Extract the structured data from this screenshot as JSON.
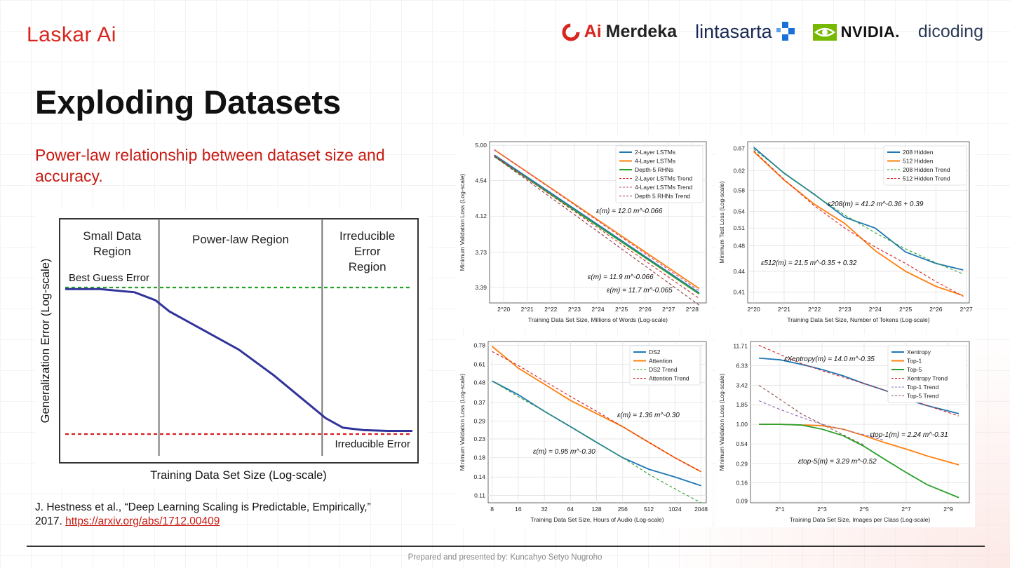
{
  "brand": "Laskar Ai",
  "partners": {
    "merdeka_ai": "Ai",
    "merdeka_text": "Merdeka",
    "lintasarta": "lintasarta",
    "nvidia": "NVIDIA.",
    "dicoding": "dicoding"
  },
  "slide": {
    "title": "Exploding Datasets",
    "subtitle": "Power-law relationship between dataset size and accuracy.",
    "citation_text": "J. Hestness et al., “Deep Learning Scaling is Predictable, Empirically,” 2017.",
    "citation_link": "https://arxiv.org/abs/1712.00409",
    "footer": "Prepared and presented by: Kuncahyo Setyo Nugroho"
  },
  "chart_data": [
    {
      "type": "line",
      "title": "",
      "xlabel": "Training Data Set Size (Log-scale)",
      "ylabel": "Generalization Error (Log-scale)",
      "regions": [
        "Small Data Region",
        "Power-law Region",
        "Irreducible Error Region"
      ],
      "region_lines": [
        [
          "Small Data",
          "Region"
        ],
        [
          "Power-law Region"
        ],
        [
          "Irreducible",
          "Error",
          "Region"
        ]
      ],
      "annotations": [
        "Best Guess Error",
        "Irreducible Error"
      ],
      "x": [
        0.0,
        0.1,
        0.2,
        0.26,
        0.3,
        0.4,
        0.5,
        0.6,
        0.7,
        0.75,
        0.8,
        0.86,
        0.93,
        1.0
      ],
      "y": [
        0.96,
        0.96,
        0.94,
        0.89,
        0.82,
        0.7,
        0.58,
        0.42,
        0.24,
        0.15,
        0.09,
        0.075,
        0.07,
        0.07
      ],
      "best_guess_level": 0.97,
      "irreducible_level": 0.05,
      "region_boundaries": [
        0.27,
        0.74
      ],
      "colors": {
        "curve": "#30339a",
        "best_guess": "#22a122",
        "irreducible": "#d42020",
        "boundary": "#777777"
      }
    },
    {
      "type": "line",
      "xlabel": "Training Data Set Size, Millions of Words (Log-scale)",
      "ylabel": "Minimum Validation Loss (Log-scale)",
      "x_scale": "log2",
      "x_ticks": [
        20,
        21,
        22,
        23,
        24,
        25,
        26,
        27,
        28
      ],
      "y_ticks": [
        "5.00",
        "4.54",
        "4.12",
        "3.73",
        "3.39"
      ],
      "ylim": [
        3.25,
        5.05
      ],
      "series": [
        {
          "name": "2-Layer LSTMs",
          "style": "solid",
          "color": "#1f77b4",
          "x": [
            19.6,
            28.3
          ],
          "y": [
            4.87,
            3.34
          ]
        },
        {
          "name": "4-Layer LSTMs",
          "style": "solid",
          "color": "#ff7f0e",
          "x": [
            19.6,
            28.3
          ],
          "y": [
            4.94,
            3.38
          ]
        },
        {
          "name": "Depth-5 RHNs",
          "style": "solid",
          "color": "#2ca02c",
          "x": [
            19.6,
            28.3
          ],
          "y": [
            4.85,
            3.33
          ]
        },
        {
          "name": "2-Layer LSTMs Trend",
          "style": "dashed",
          "color": "#d62728",
          "x": [
            19.6,
            28.3
          ],
          "y": [
            4.86,
            3.29
          ]
        },
        {
          "name": "4-Layer LSTMs Trend",
          "style": "dashed",
          "color": "#c4448f",
          "x": [
            19.6,
            28.3
          ],
          "y": [
            4.94,
            3.36
          ]
        },
        {
          "name": "Depth 5 RHNs Trend",
          "style": "dashed",
          "color": "#8c3a3a",
          "x": [
            19.6,
            28.3
          ],
          "y": [
            4.85,
            3.23
          ]
        }
      ],
      "annotations": [
        "ε(m) = 12.0 m^-0.066",
        "ε(m) = 11.9 m^-0.066",
        "ε(m) = 11.7 m^-0.065"
      ]
    },
    {
      "type": "line",
      "xlabel": "Training Data Set Size, Number of Tokens (Log-scale)",
      "ylabel": "Minimum Test Loss (Log-scale)",
      "x_scale": "log2",
      "x_ticks": [
        20,
        21,
        22,
        23,
        24,
        25,
        26,
        27
      ],
      "y_ticks": [
        "0.67",
        "0.62",
        "0.58",
        "0.54",
        "0.51",
        "0.48",
        "0.44",
        "0.41"
      ],
      "series": [
        {
          "name": "208 Hidden",
          "style": "solid",
          "color": "#1f77b4",
          "x": [
            20,
            21,
            22,
            23,
            24,
            25,
            26,
            26.9
          ],
          "y": [
            0.672,
            0.615,
            0.572,
            0.529,
            0.51,
            0.47,
            0.452,
            0.442
          ]
        },
        {
          "name": "512 Hidden",
          "style": "solid",
          "color": "#ff7f0e",
          "x": [
            20,
            21,
            22,
            23,
            24,
            25,
            26,
            26.9
          ],
          "y": [
            0.662,
            0.601,
            0.553,
            0.518,
            0.472,
            0.44,
            0.418,
            0.405
          ]
        },
        {
          "name": "208 Hidden Trend",
          "style": "dashed",
          "color": "#2ca02c",
          "x": [
            20,
            21,
            22,
            23,
            24,
            25,
            26,
            26.9
          ],
          "y": [
            0.668,
            0.616,
            0.571,
            0.533,
            0.502,
            0.475,
            0.453,
            0.436
          ]
        },
        {
          "name": "512 Hidden Trend",
          "style": "dashed",
          "color": "#d62728",
          "x": [
            20,
            21,
            22,
            23,
            24,
            25,
            26,
            26.9
          ],
          "y": [
            0.664,
            0.602,
            0.55,
            0.51,
            0.478,
            0.452,
            0.425,
            0.404
          ]
        }
      ],
      "annotations": [
        "ε208(m) = 41.2 m^-0.36 + 0.39",
        "ε512(m) = 21.5 m^-0.35 + 0.32"
      ]
    },
    {
      "type": "line",
      "xlabel": "Training Data Set Size, Hours of Audio (Log-scale)",
      "ylabel": "Minimum Validation Loss (Log-scale)",
      "x_scale": "log2",
      "x_ticks": [
        8,
        16,
        32,
        64,
        128,
        256,
        512,
        1024,
        2048
      ],
      "y_ticks": [
        "0.78",
        "0.61",
        "0.48",
        "0.37",
        "0.29",
        "0.23",
        "0.18",
        "0.14",
        "0.11"
      ],
      "series": [
        {
          "name": "DS2",
          "style": "solid",
          "color": "#1f77b4",
          "x": [
            3,
            4,
            5,
            6,
            7,
            8,
            9,
            10,
            11
          ],
          "y": [
            0.49,
            0.41,
            0.33,
            0.27,
            0.22,
            0.18,
            0.155,
            0.14,
            0.125
          ]
        },
        {
          "name": "Attention",
          "style": "solid",
          "color": "#ff7f0e",
          "x": [
            3,
            4,
            5,
            6,
            7,
            8,
            9,
            10,
            11
          ],
          "y": [
            0.77,
            0.58,
            0.47,
            0.38,
            0.32,
            0.27,
            0.22,
            0.18,
            0.15
          ]
        },
        {
          "name": "DS2 Trend",
          "style": "dashed",
          "color": "#2ca02c",
          "x": [
            3,
            4,
            5,
            6,
            7,
            8,
            9,
            10,
            11
          ],
          "y": [
            0.49,
            0.4,
            0.33,
            0.27,
            0.22,
            0.18,
            0.145,
            0.12,
            0.1
          ]
        },
        {
          "name": "Attention Trend",
          "style": "dashed",
          "color": "#d62728",
          "x": [
            3,
            4,
            5,
            6,
            7,
            8,
            9,
            10,
            11
          ],
          "y": [
            0.72,
            0.6,
            0.49,
            0.4,
            0.33,
            0.27,
            0.22,
            0.18,
            0.15
          ]
        }
      ],
      "annotations": [
        "ε(m) = 1.36 m^-0.30",
        "ε(m) = 0.95 m^-0.30"
      ]
    },
    {
      "type": "line",
      "xlabel": "Training Data Set Size, Images per Class (Log-scale)",
      "ylabel": "Minimum Validation Loss (Log-scale)",
      "x_scale": "log2",
      "x_ticks": [
        1,
        3,
        5,
        7,
        9
      ],
      "y_ticks": [
        "11.71",
        "6.33",
        "3.42",
        "1.85",
        "1.00",
        "0.54",
        "0.29",
        "0.16",
        "0.09"
      ],
      "series": [
        {
          "name": "Xentropy",
          "style": "solid",
          "color": "#1f77b4",
          "x": [
            0,
            1,
            2,
            3,
            4,
            5,
            6,
            7,
            8,
            9.5
          ],
          "y": [
            8.0,
            7.6,
            6.6,
            5.6,
            4.6,
            3.6,
            2.9,
            2.2,
            1.8,
            1.4
          ]
        },
        {
          "name": "Top-1",
          "style": "solid",
          "color": "#ff7f0e",
          "x": [
            0,
            1,
            2,
            3,
            4,
            5,
            6,
            7,
            8,
            9.5
          ],
          "y": [
            1.0,
            1.0,
            0.98,
            0.96,
            0.86,
            0.7,
            0.56,
            0.46,
            0.37,
            0.28
          ]
        },
        {
          "name": "Top-5",
          "style": "solid",
          "color": "#2ca02c",
          "x": [
            0,
            1,
            2,
            3,
            4,
            5,
            6,
            7,
            8,
            9.5
          ],
          "y": [
            1.0,
            1.0,
            0.98,
            0.86,
            0.7,
            0.5,
            0.33,
            0.22,
            0.15,
            0.1
          ]
        },
        {
          "name": "Xentropy Trend",
          "style": "dashed",
          "color": "#d62728",
          "x": [
            0,
            1,
            2,
            3,
            4,
            5,
            6,
            7,
            8,
            9.5
          ],
          "y": [
            12.0,
            9.0,
            6.8,
            5.4,
            4.4,
            3.6,
            2.9,
            2.3,
            1.8,
            1.3
          ]
        },
        {
          "name": "Top-1 Trend",
          "style": "dashed",
          "color": "#9467bd",
          "x": [
            0,
            1,
            2,
            3,
            4,
            5,
            6
          ],
          "y": [
            2.1,
            1.6,
            1.25,
            1.0,
            0.85,
            0.72,
            0.6
          ]
        },
        {
          "name": "Top-5 Trend",
          "style": "dashed",
          "color": "#8c564b",
          "x": [
            0,
            1,
            2,
            3,
            4,
            5
          ],
          "y": [
            3.4,
            2.2,
            1.4,
            1.0,
            0.72,
            0.52
          ]
        }
      ],
      "annotations": [
        "εXentropy(m) = 14.0 m^-0.35",
        "εtop-1(m) = 2.24 m^-0.31",
        "εtop-5(m) = 3.29 m^-0.52"
      ]
    }
  ]
}
